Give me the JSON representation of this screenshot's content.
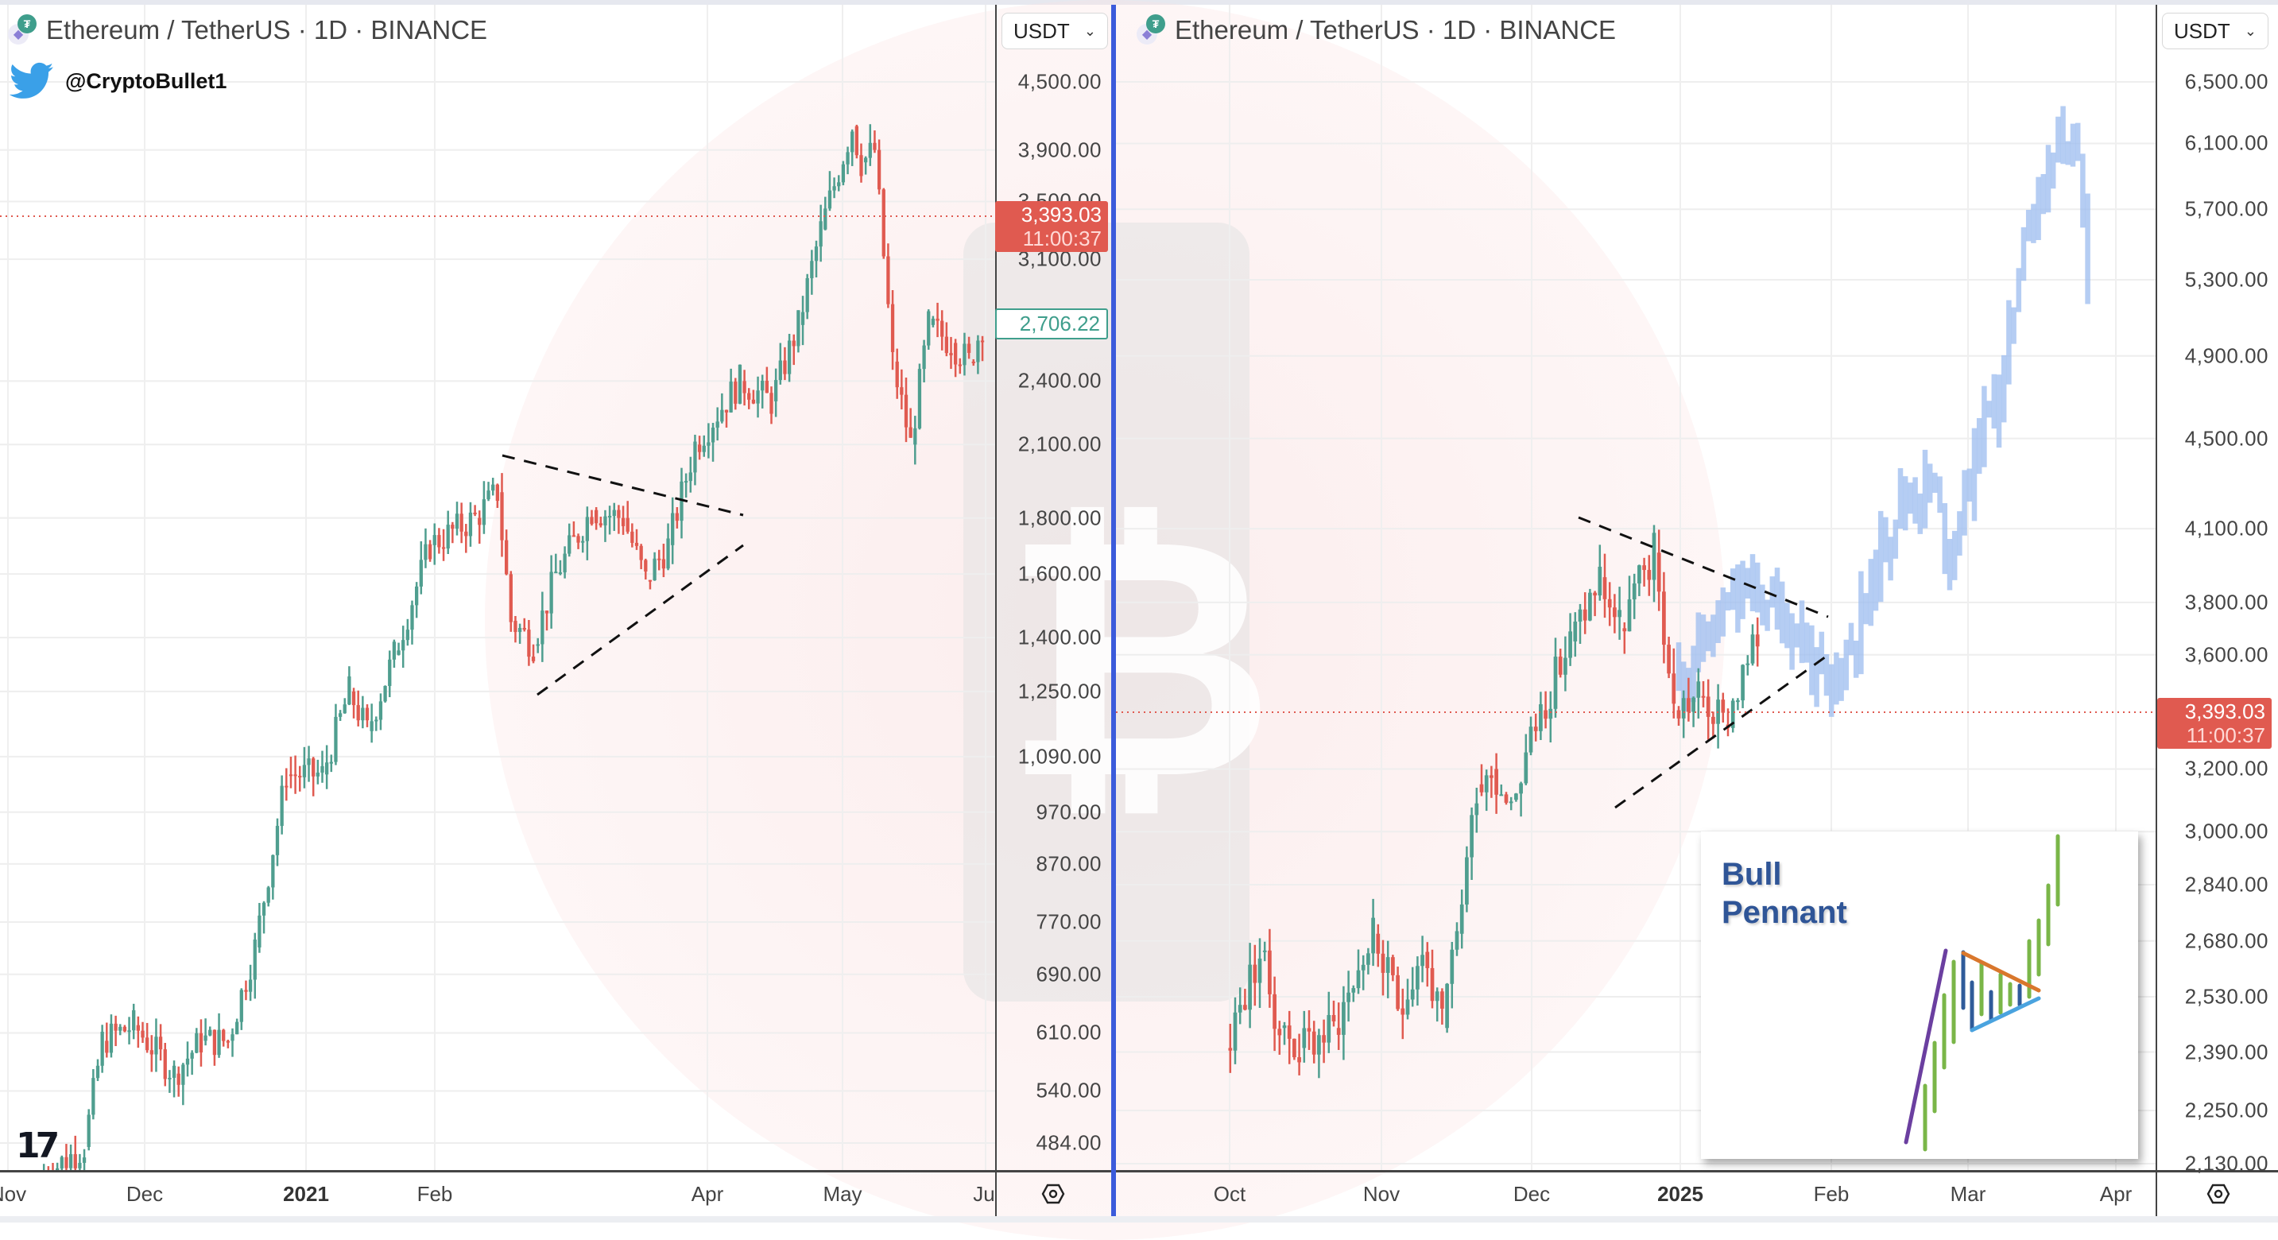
{
  "left_chart": {
    "title": "Ethereum / TetherUS · 1D · BINANCE",
    "symbol": "Ethereum / TetherUS",
    "interval": "1D",
    "exchange": "BINANCE",
    "currency": "USDT",
    "watermark_handle": "@CryptoBullet1",
    "price_ticks": [
      "4,500.00",
      "3,900.00",
      "3,500.00",
      "3,100.00",
      "2,400.00",
      "2,100.00",
      "1,800.00",
      "1,600.00",
      "1,400.00",
      "1,250.00",
      "1,090.00",
      "970.00",
      "870.00",
      "770.00",
      "690.00",
      "610.00",
      "540.00",
      "484.00"
    ],
    "current_price": "3,393.03",
    "countdown": "11:00:37",
    "last_bar_price": "2,706.22",
    "time_labels": [
      {
        "label": "Nov",
        "bold": false
      },
      {
        "label": "Dec",
        "bold": false
      },
      {
        "label": "2021",
        "bold": true
      },
      {
        "label": "Feb",
        "bold": false
      },
      {
        "label": "Apr",
        "bold": false
      },
      {
        "label": "May",
        "bold": false
      },
      {
        "label": "Ju",
        "bold": false
      }
    ]
  },
  "right_chart": {
    "title": "Ethereum / TetherUS · 1D · BINANCE",
    "symbol": "Ethereum / TetherUS",
    "interval": "1D",
    "exchange": "BINANCE",
    "currency": "USDT",
    "price_ticks": [
      "6,500.00",
      "6,100.00",
      "5,700.00",
      "5,300.00",
      "4,900.00",
      "4,500.00",
      "4,100.00",
      "3,800.00",
      "3,600.00",
      "3,200.00",
      "3,000.00",
      "2,840.00",
      "2,680.00",
      "2,530.00",
      "2,390.00",
      "2,250.00",
      "2,130.00"
    ],
    "current_price": "3,393.03",
    "countdown": "11:00:37",
    "time_labels": [
      {
        "label": "Oct",
        "bold": false
      },
      {
        "label": "Nov",
        "bold": false
      },
      {
        "label": "Dec",
        "bold": false
      },
      {
        "label": "2025",
        "bold": true
      },
      {
        "label": "Feb",
        "bold": false
      },
      {
        "label": "Mar",
        "bold": false
      },
      {
        "label": "Apr",
        "bold": false
      }
    ],
    "inset": {
      "title_line1": "Bull",
      "title_line2": "Pennant"
    }
  },
  "colors": {
    "up": "#4f9e8f",
    "down": "#e05a50",
    "projection": "#9dbdf0",
    "divider": "#3b5bdb",
    "price_line": "#e05a50",
    "inset_title": "#2f5597"
  },
  "chart_data": [
    {
      "type": "candlestick",
      "title": "Ethereum / TetherUS · 1D · BINANCE (2020–2021)",
      "xlabel": "",
      "ylabel": "USDT",
      "scale": "log",
      "ylim": [
        460,
        4700
      ],
      "x_ticks": [
        "Nov",
        "Dec",
        "2021",
        "Feb",
        "Apr",
        "May",
        "Ju"
      ],
      "annotations": [
        "symmetrical triangle (bull pennant) drawn Feb–Apr 2021, dashed"
      ],
      "path": [
        [
          "2020-11-10",
          450
        ],
        [
          "2020-11-20",
          480
        ],
        [
          "2020-11-24",
          600
        ],
        [
          "2020-12-01",
          620
        ],
        [
          "2020-12-10",
          560
        ],
        [
          "2020-12-16",
          600
        ],
        [
          "2020-12-22",
          600
        ],
        [
          "2020-12-28",
          730
        ],
        [
          "2021-01-04",
          1050
        ],
        [
          "2021-01-12",
          1050
        ],
        [
          "2021-01-18",
          1250
        ],
        [
          "2021-01-22",
          1150
        ],
        [
          "2021-01-28",
          1350
        ],
        [
          "2021-02-05",
          1700
        ],
        [
          "2021-02-15",
          1800
        ],
        [
          "2021-02-20",
          1900
        ],
        [
          "2021-02-23",
          1450
        ],
        [
          "2021-02-28",
          1380
        ],
        [
          "2021-03-05",
          1600
        ],
        [
          "2021-03-13",
          1830
        ],
        [
          "2021-03-20",
          1800
        ],
        [
          "2021-03-25",
          1580
        ],
        [
          "2021-03-30",
          1700
        ],
        [
          "2021-04-05",
          2100
        ],
        [
          "2021-04-15",
          2400
        ],
        [
          "2021-04-22",
          2300
        ],
        [
          "2021-04-28",
          2700
        ],
        [
          "2021-05-03",
          3300
        ],
        [
          "2021-05-10",
          4100
        ],
        [
          "2021-05-12",
          3800
        ],
        [
          "2021-05-15",
          3900
        ],
        [
          "2021-05-19",
          2500
        ],
        [
          "2021-05-23",
          2100
        ],
        [
          "2021-05-27",
          2700
        ],
        [
          "2021-06-01",
          2600
        ],
        [
          "2021-06-05",
          2500
        ],
        [
          "2021-06-08",
          2700
        ]
      ],
      "current_price": 3393.03,
      "last_bar_label": 2706.22
    },
    {
      "type": "candlestick",
      "title": "Ethereum / TetherUS · 1D · BINANCE (2024–2025) with projection",
      "xlabel": "",
      "ylabel": "USDT",
      "scale": "log",
      "ylim": [
        2100,
        6700
      ],
      "x_ticks": [
        "Oct",
        "Nov",
        "Dec",
        "2025",
        "Feb",
        "Mar",
        "Apr"
      ],
      "annotations": [
        "symmetrical triangle drawn Dec 2024–Feb 2025, dashed",
        "blue projected bars (fractal of 2021) to ~6,300 in Mar 2025",
        "inset: Bull Pennant diagram"
      ],
      "path": [
        [
          "2024-09-20",
          2400
        ],
        [
          "2024-09-27",
          2650
        ],
        [
          "2024-10-01",
          2450
        ],
        [
          "2024-10-05",
          2400
        ],
        [
          "2024-10-12",
          2450
        ],
        [
          "2024-10-20",
          2700
        ],
        [
          "2024-10-25",
          2500
        ],
        [
          "2024-10-30",
          2650
        ],
        [
          "2024-11-03",
          2450
        ],
        [
          "2024-11-06",
          2700
        ],
        [
          "2024-11-10",
          3150
        ],
        [
          "2024-11-13",
          3200
        ],
        [
          "2024-11-17",
          3100
        ],
        [
          "2024-11-23",
          3400
        ],
        [
          "2024-11-29",
          3650
        ],
        [
          "2024-12-05",
          3900
        ],
        [
          "2024-12-09",
          3700
        ],
        [
          "2024-12-16",
          4000
        ],
        [
          "2024-12-20",
          3400
        ],
        [
          "2024-12-25",
          3450
        ],
        [
          "2024-12-30",
          3350
        ],
        [
          "2025-01-06",
          3650
        ]
      ],
      "projection_path": [
        [
          "2024-12-20",
          3500
        ],
        [
          "2025-01-03",
          3850
        ],
        [
          "2025-01-08",
          3800
        ],
        [
          "2025-01-14",
          3700
        ],
        [
          "2025-01-20",
          3450
        ],
        [
          "2025-01-27",
          3750
        ],
        [
          "2025-02-03",
          4200
        ],
        [
          "2025-02-10",
          4300
        ],
        [
          "2025-02-14",
          4000
        ],
        [
          "2025-02-20",
          4500
        ],
        [
          "2025-02-25",
          4800
        ],
        [
          "2025-03-01",
          5600
        ],
        [
          "2025-03-05",
          5800
        ],
        [
          "2025-03-08",
          6300
        ],
        [
          "2025-03-12",
          5900
        ],
        [
          "2025-03-14",
          5300
        ]
      ],
      "current_price": 3393.03
    }
  ]
}
